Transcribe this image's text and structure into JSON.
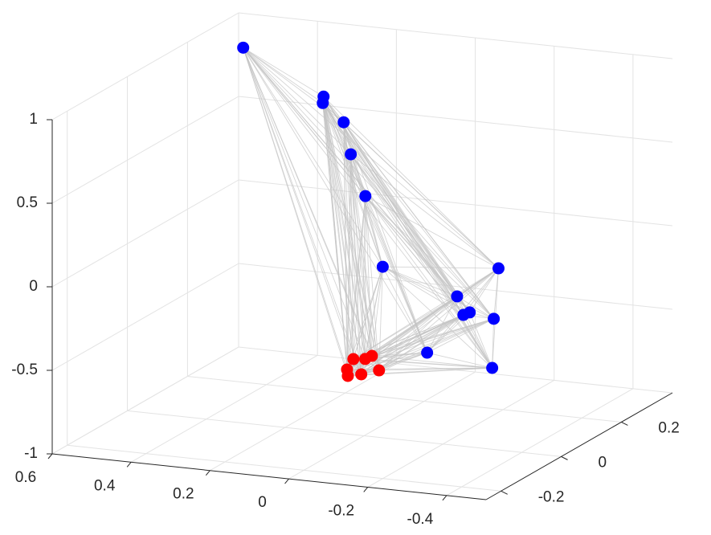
{
  "chart_data": {
    "type": "scatter3d",
    "xlim": [
      -0.5,
      0.6
    ],
    "ylim": [
      -0.25,
      0.37
    ],
    "zlim": [
      -1,
      1
    ],
    "xticks": [
      0.6,
      0.4,
      0.2,
      0,
      -0.2,
      -0.4
    ],
    "yticks": [
      -0.2,
      0,
      0.2
    ],
    "zticks": [
      -1,
      -0.5,
      0,
      0.5,
      1
    ],
    "grid": true,
    "series": [
      {
        "color": "#0000ff",
        "x": [
          0.535,
          0.255,
          0.257,
          0.204,
          0.186,
          0.149,
          0.105,
          -0.341,
          -0.236,
          -0.268,
          -0.252,
          -0.329,
          -0.16,
          -0.325
        ],
        "y": [
          0.3,
          0.2,
          0.2,
          0.2,
          0.2,
          0.2,
          0.2,
          0,
          0,
          0,
          0,
          0,
          0,
          0
        ],
        "z": [
          0.88,
          0.76,
          0.721,
          0.619,
          0.432,
          0.191,
          -0.221,
          0.087,
          -0.107,
          -0.195,
          -0.214,
          -0.218,
          -0.463,
          -0.513
        ]
      },
      {
        "color": "#ff0000",
        "x": [
          0.043,
          0.027,
          -0.003,
          -0.02,
          -0.038,
          0.007,
          0.041
        ],
        "y": [
          0,
          0,
          0,
          0,
          0,
          0,
          0
        ],
        "z": [
          -0.614,
          -0.548,
          -0.54,
          -0.517,
          -0.599,
          -0.634,
          -0.652
        ]
      }
    ]
  }
}
